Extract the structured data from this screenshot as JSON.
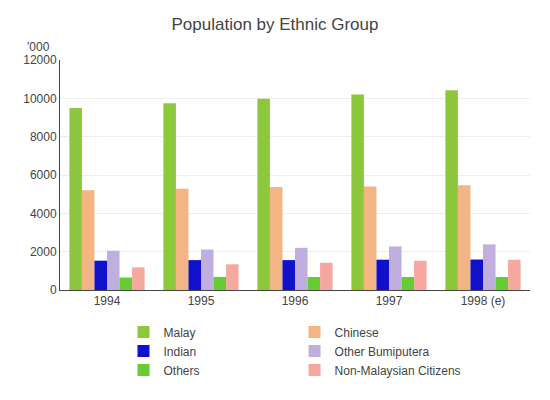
{
  "chart_data": {
    "type": "bar",
    "title": "Population by Ethnic Group",
    "annotations": [
      "'000"
    ],
    "categories": [
      "1994",
      "1995",
      "1996",
      "1997",
      "1998 (e)"
    ],
    "series": [
      {
        "name": "Malay",
        "color": "#8dc83c",
        "values": [
          9500,
          9750,
          9980,
          10200,
          10420
        ]
      },
      {
        "name": "Chinese",
        "color": "#f4b585",
        "values": [
          5200,
          5280,
          5380,
          5400,
          5460
        ]
      },
      {
        "name": "Indian",
        "color": "#1111cc",
        "values": [
          1530,
          1560,
          1560,
          1580,
          1590
        ]
      },
      {
        "name": "Other Bumiputera",
        "color": "#c0aede",
        "values": [
          2050,
          2110,
          2200,
          2270,
          2380
        ]
      },
      {
        "name": "Others",
        "color": "#66cc33",
        "values": [
          650,
          680,
          680,
          680,
          680
        ]
      },
      {
        "name": "Non-Malaysian Citizens",
        "color": "#f5a8a0",
        "values": [
          1180,
          1340,
          1420,
          1530,
          1580
        ]
      }
    ],
    "ylim": [
      0,
      12000
    ],
    "yticks": [
      0,
      2000,
      4000,
      6000,
      8000,
      10000,
      12000
    ],
    "grid": true,
    "legend": "bottom"
  }
}
